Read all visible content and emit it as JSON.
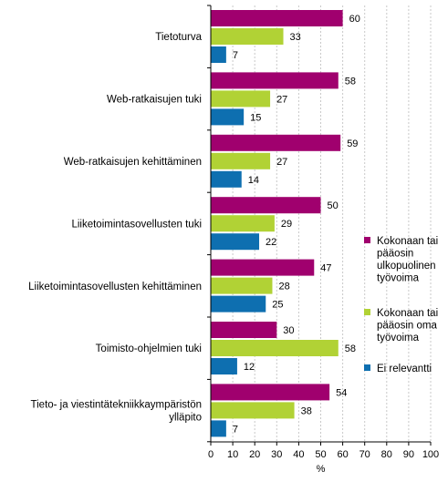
{
  "chart_data": {
    "type": "bar",
    "orientation": "horizontal",
    "title": "",
    "xlabel": "%",
    "ylabel": "",
    "xlim": [
      0,
      100
    ],
    "xticks": [
      0,
      10,
      20,
      30,
      40,
      50,
      60,
      70,
      80,
      90,
      100
    ],
    "grid": true,
    "legend_position": "right",
    "categories": [
      [
        "Tietoturva"
      ],
      [
        "Web-ratkaisujen tuki"
      ],
      [
        "Web-ratkaisujen kehittäminen"
      ],
      [
        "Liiketoimintasovellusten tuki"
      ],
      [
        "Liiketoimintasovellusten kehittäminen"
      ],
      [
        "Toimisto-ohjelmien tuki"
      ],
      [
        "Tieto- ja viestintätekniikkaympäristön",
        "ylläpito"
      ]
    ],
    "series": [
      {
        "name": [
          "Kokonaan tai",
          "pääosin",
          "ulkopuolinen",
          "työvoima"
        ],
        "color": "#a0006e",
        "values": [
          60,
          58,
          59,
          50,
          47,
          30,
          54
        ]
      },
      {
        "name": [
          "Kokonaan tai",
          "pääosin oma",
          "työvoima"
        ],
        "color": "#b1d235",
        "values": [
          33,
          27,
          27,
          29,
          28,
          58,
          38
        ]
      },
      {
        "name": [
          "Ei relevantti"
        ],
        "color": "#0e6fb0",
        "values": [
          7,
          15,
          14,
          22,
          25,
          12,
          7
        ]
      }
    ]
  }
}
